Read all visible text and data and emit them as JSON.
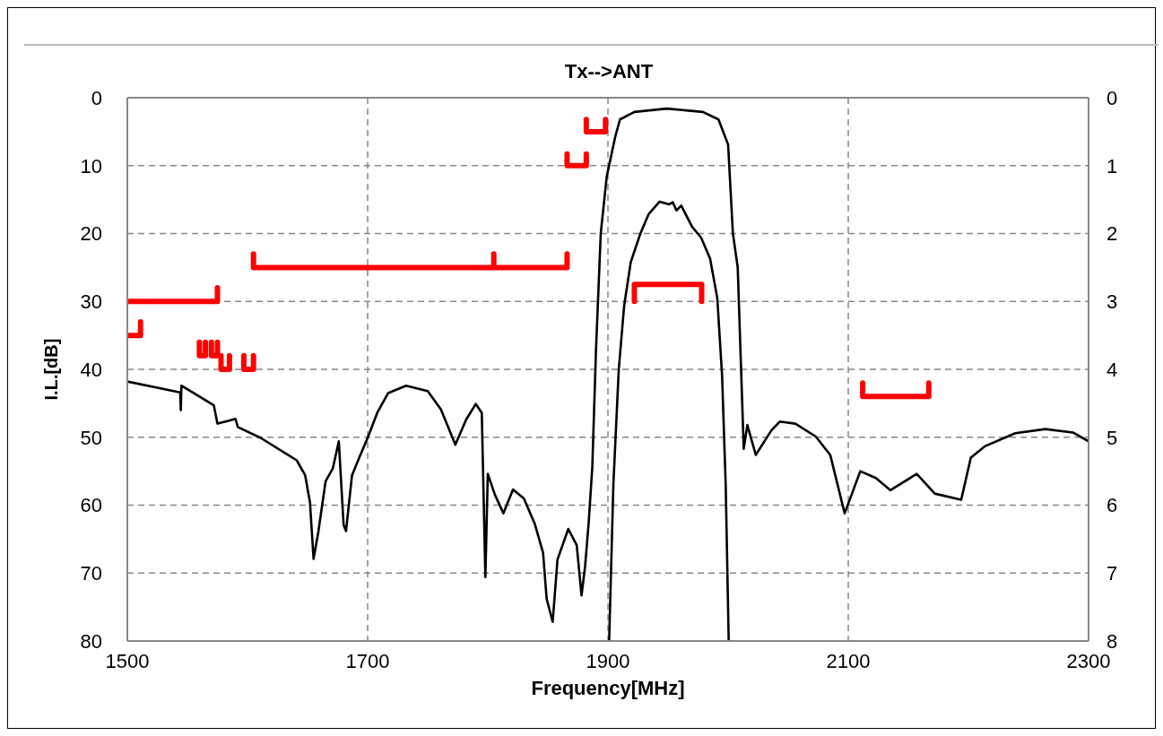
{
  "chart_data": {
    "type": "line",
    "title": "Tx-->ANT",
    "xlabel": "Frequency[MHz]",
    "ylabel": "I.L.[dB]",
    "xlim": [
      1500,
      2300
    ],
    "xticks": [
      1500,
      1700,
      1900,
      2100,
      2300
    ],
    "ylim": [
      80,
      0
    ],
    "yticks": [
      0,
      10,
      20,
      30,
      40,
      50,
      60,
      70,
      80
    ],
    "y2lim": [
      8,
      0
    ],
    "y2ticks": [
      0,
      1,
      2,
      3,
      4,
      5,
      6,
      7,
      8
    ],
    "grid": true,
    "series": [
      {
        "color": "#000000",
        "x": [
          1500,
          1544,
          1544.5,
          1545,
          1572,
          1575,
          1590,
          1592,
          1611,
          1641,
          1648,
          1652,
          1655,
          1659,
          1665,
          1671,
          1676,
          1680,
          1682,
          1687,
          1693,
          1700,
          1708,
          1717,
          1732,
          1750,
          1761,
          1773,
          1782,
          1790,
          1795,
          1798,
          1800,
          1806,
          1813,
          1821,
          1830,
          1839,
          1846,
          1849,
          1854,
          1858,
          1867,
          1874,
          1878,
          1881,
          1884,
          1887,
          1890,
          1894,
          1899,
          1906,
          1910,
          1922,
          1949,
          1979,
          1992,
          2000,
          2004,
          2008,
          2013,
          2016,
          2023,
          2036,
          2043,
          2056,
          2073,
          2085,
          2097,
          2110,
          2123,
          2135,
          2157,
          2172,
          2194,
          2202,
          2214,
          2239,
          2264,
          2287,
          2300
        ],
        "values": [
          41.8,
          43.4,
          46.0,
          42.4,
          45.3,
          48.0,
          47.3,
          48.5,
          50.1,
          53.4,
          55.6,
          59.6,
          67.9,
          63.9,
          56.5,
          54.6,
          50.6,
          62.9,
          63.8,
          55.6,
          53.0,
          50.1,
          46.4,
          43.5,
          42.4,
          43.2,
          45.9,
          51.1,
          47.4,
          45.1,
          46.4,
          70.6,
          55.4,
          58.5,
          61.2,
          57.7,
          59.0,
          62.7,
          67.0,
          73.8,
          77.2,
          68.0,
          63.5,
          65.9,
          73.3,
          69.0,
          62.5,
          54.3,
          37.4,
          20.0,
          11.6,
          5.8,
          3.2,
          2.1,
          1.6,
          2.1,
          3.2,
          6.9,
          20.0,
          25.0,
          51.7,
          48.2,
          52.6,
          49.0,
          47.7,
          48.0,
          49.9,
          52.6,
          61.2,
          55.0,
          56.0,
          57.8,
          55.4,
          58.3,
          59.2,
          53.0,
          51.3,
          49.4,
          48.8,
          49.3,
          50.6
        ]
      },
      {
        "color": "#000000",
        "axis": "y2",
        "x": [
          1901,
          1904.5,
          1909,
          1913.5,
          1919,
          1927,
          1934,
          1943,
          1951,
          1954,
          1957,
          1961,
          1970,
          1977.5,
          1985,
          1991,
          1995,
          1998,
          2000.5
        ],
        "values": [
          8.0,
          5.7,
          4.0,
          3.06,
          2.42,
          2.0,
          1.71,
          1.53,
          1.57,
          1.54,
          1.66,
          1.59,
          1.9,
          2.06,
          2.37,
          2.95,
          4.1,
          5.7,
          8.0
        ]
      },
      {
        "color": "#ff0000",
        "x": [
          1500,
          1575,
          1575
        ],
        "values": [
          30,
          30,
          28
        ]
      },
      {
        "color": "#ff0000",
        "x": [
          1500,
          1511,
          1511
        ],
        "values": [
          35,
          35,
          33
        ]
      },
      {
        "color": "#ff0000",
        "x": [
          1560,
          1560,
          1565,
          1565
        ],
        "values": [
          36,
          38,
          38,
          36
        ]
      },
      {
        "color": "#ff0000",
        "x": [
          1570,
          1570,
          1575,
          1575
        ],
        "values": [
          36,
          38,
          38,
          36
        ]
      },
      {
        "color": "#ff0000",
        "x": [
          1578,
          1578,
          1585,
          1585
        ],
        "values": [
          38,
          40,
          40,
          38
        ]
      },
      {
        "color": "#ff0000",
        "x": [
          1597,
          1597,
          1605,
          1605
        ],
        "values": [
          38,
          40,
          40,
          38
        ]
      },
      {
        "color": "#ff0000",
        "x": [
          1605,
          1605,
          1805,
          1805,
          1805,
          1866,
          1866
        ],
        "values": [
          23,
          25,
          25,
          23,
          25,
          25,
          23
        ]
      },
      {
        "color": "#ff0000",
        "x": [
          1866,
          1866,
          1882,
          1882
        ],
        "values": [
          8.3,
          10,
          10,
          8.3
        ]
      },
      {
        "color": "#ff0000",
        "x": [
          1882,
          1882,
          1898,
          1898
        ],
        "values": [
          3.2,
          5,
          5,
          3.2
        ]
      },
      {
        "color": "#ff0000",
        "axis": "y2",
        "x": [
          1922,
          1922,
          1978,
          1978
        ],
        "values": [
          3.0,
          2.75,
          2.75,
          3.0
        ]
      },
      {
        "color": "#ff0000",
        "x": [
          2112,
          2112,
          2167,
          2167
        ],
        "values": [
          42,
          44,
          44,
          42
        ]
      }
    ]
  }
}
